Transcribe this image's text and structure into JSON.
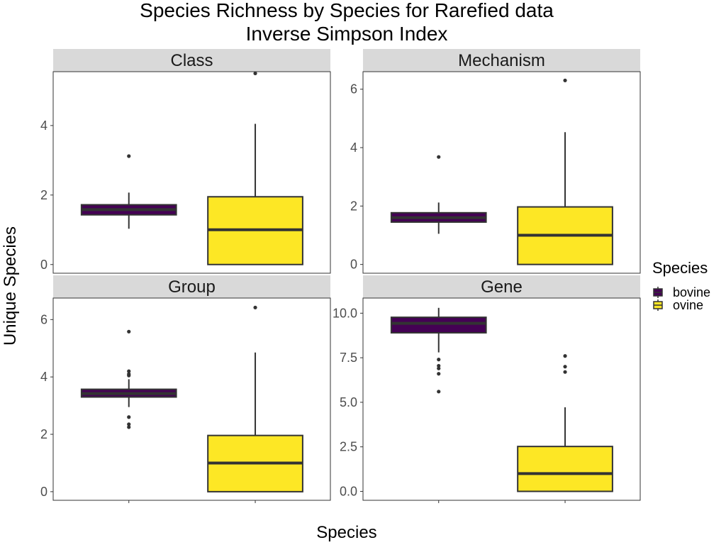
{
  "chart_data": {
    "type": "boxplot",
    "title_line1": "Species Richness by Species for Rarefied data",
    "title_line2": "Inverse Simpson Index",
    "xlabel": "Species",
    "ylabel": "Unique Species",
    "legend": {
      "title": "Species",
      "placement": "right",
      "entries": [
        {
          "name": "bovine",
          "color": "#440154"
        },
        {
          "name": "ovine",
          "color": "#FDE725"
        }
      ]
    },
    "grid": false,
    "facets": [
      {
        "name": "Class",
        "ylim": [
          -0.25,
          5.55
        ],
        "yticks": [
          0,
          2,
          4
        ],
        "ytick_labels": [
          "0",
          "2",
          "4"
        ],
        "boxes": [
          {
            "group": "bovine",
            "q1": 1.43,
            "median": 1.58,
            "q3": 1.72,
            "whisker_low": 1.03,
            "whisker_high": 2.07,
            "outliers": [
              3.12
            ]
          },
          {
            "group": "ovine",
            "q1": 0.0,
            "median": 1.0,
            "q3": 1.95,
            "whisker_low": 0.0,
            "whisker_high": 4.05,
            "outliers": [
              5.5
            ]
          }
        ]
      },
      {
        "name": "Mechanism",
        "ylim": [
          -0.3,
          6.6
        ],
        "yticks": [
          0,
          2,
          4,
          6
        ],
        "ytick_labels": [
          "0",
          "2",
          "4",
          "6"
        ],
        "boxes": [
          {
            "group": "bovine",
            "q1": 1.45,
            "median": 1.6,
            "q3": 1.77,
            "whisker_low": 1.05,
            "whisker_high": 2.12,
            "outliers": [
              3.68
            ]
          },
          {
            "group": "ovine",
            "q1": 0.0,
            "median": 1.0,
            "q3": 1.97,
            "whisker_low": 0.0,
            "whisker_high": 4.53,
            "outliers": [
              6.3
            ]
          }
        ]
      },
      {
        "name": "Group",
        "ylim": [
          -0.3,
          6.75
        ],
        "yticks": [
          0,
          2,
          4,
          6
        ],
        "ytick_labels": [
          "0",
          "2",
          "4",
          "6"
        ],
        "boxes": [
          {
            "group": "bovine",
            "q1": 3.3,
            "median": 3.42,
            "q3": 3.57,
            "whisker_low": 2.95,
            "whisker_high": 3.92,
            "outliers": [
              5.58,
              4.2,
              4.1,
              4.05,
              2.6,
              2.35,
              2.25
            ]
          },
          {
            "group": "ovine",
            "q1": 0.0,
            "median": 1.0,
            "q3": 1.96,
            "whisker_low": 0.0,
            "whisker_high": 4.85,
            "outliers": [
              6.42
            ]
          }
        ]
      },
      {
        "name": "Gene",
        "ylim": [
          -0.5,
          10.85
        ],
        "yticks": [
          0,
          2.5,
          5,
          7.5,
          10
        ],
        "ytick_labels": [
          "0.0",
          "2.5",
          "5.0",
          "7.5",
          "10.0"
        ],
        "boxes": [
          {
            "group": "bovine",
            "q1": 8.9,
            "median": 9.43,
            "q3": 9.77,
            "whisker_low": 7.8,
            "whisker_high": 10.3,
            "outliers": [
              7.4,
              7.05,
              6.9,
              6.6,
              5.6
            ]
          },
          {
            "group": "ovine",
            "q1": 0.0,
            "median": 1.0,
            "q3": 2.52,
            "whisker_low": 0.0,
            "whisker_high": 4.72,
            "outliers": [
              7.6,
              7.0,
              6.7
            ]
          }
        ]
      }
    ]
  }
}
